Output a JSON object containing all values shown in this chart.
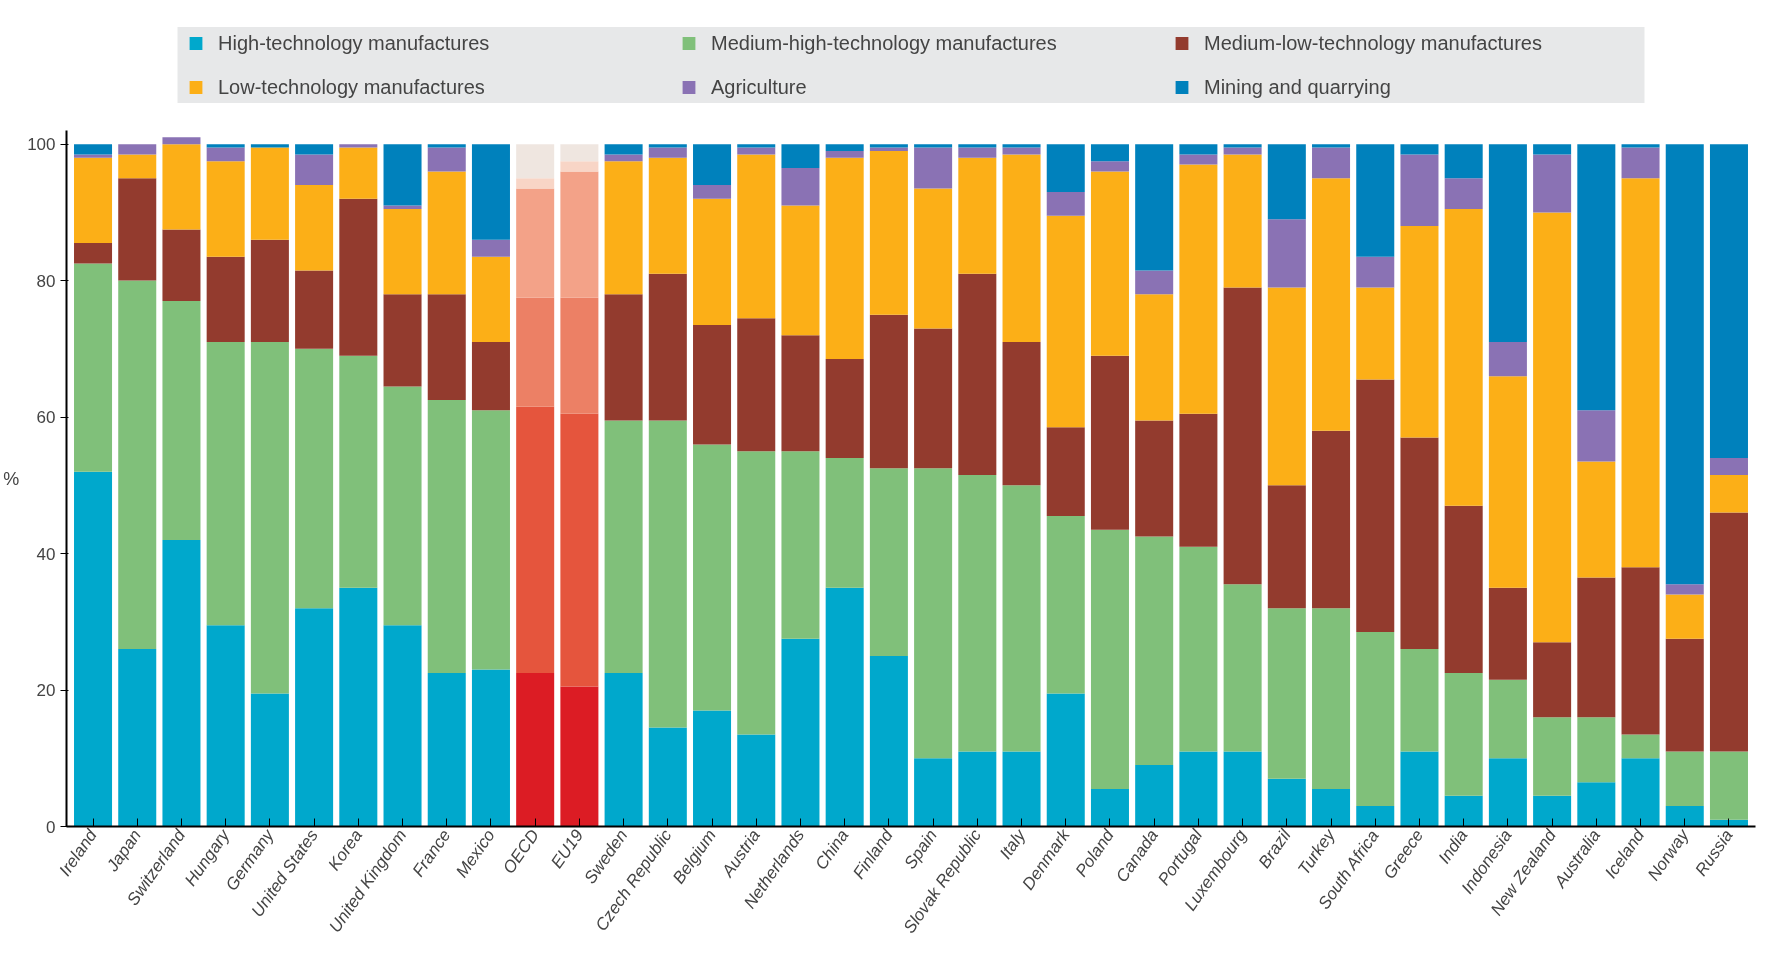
{
  "chart_data": {
    "type": "bar",
    "stacked": true,
    "ylabel": "%",
    "ylim": [
      0,
      102
    ],
    "yticks": [
      0,
      20,
      40,
      60,
      80,
      100
    ],
    "legend": "top",
    "grid": false,
    "categories": [
      "Ireland",
      "Japan",
      "Switzerland",
      "Hungary",
      "Germany",
      "United States",
      "Korea",
      "United Kingdom",
      "France",
      "Mexico",
      "OECD",
      "EU19",
      "Sweden",
      "Czech Republic",
      "Belgium",
      "Austria",
      "Netherlands",
      "China",
      "Finland",
      "Spain",
      "Slovak Republic",
      "Italy",
      "Denmark",
      "Poland",
      "Canada",
      "Portugal",
      "Luxembourg",
      "Brazil",
      "Turkey",
      "South Africa",
      "Greece",
      "India",
      "Indonesia",
      "New Zealand",
      "Australia",
      "Iceland",
      "Norway",
      "Russia"
    ],
    "series": [
      {
        "name": "High-technology manufactures",
        "color": "#00a8cc",
        "colors": [
          "#00a8cc",
          "#00a8cc",
          "#00a8cc",
          "#00a8cc",
          "#00a8cc",
          "#00a8cc",
          "#00a8cc",
          "#00a8cc",
          "#00a8cc",
          "#00a8cc",
          "#dc1c24",
          "#dc1c24",
          "#00a8cc",
          "#00a8cc",
          "#00a8cc",
          "#00a8cc",
          "#00a8cc",
          "#00a8cc",
          "#00a8cc",
          "#00a8cc",
          "#00a8cc",
          "#00a8cc",
          "#00a8cc",
          "#00a8cc",
          "#00a8cc",
          "#00a8cc",
          "#00a8cc",
          "#00a8cc",
          "#00a8cc",
          "#00a8cc",
          "#00a8cc",
          "#00a8cc",
          "#00a8cc",
          "#00a8cc",
          "#00a8cc",
          "#00a8cc",
          "#00a8cc",
          "#00a8cc"
        ],
        "values": [
          52,
          26,
          42,
          29.5,
          19.5,
          32,
          35,
          29.5,
          22.5,
          23,
          22.5,
          20.5,
          22.5,
          14.5,
          17,
          13.5,
          27.5,
          35,
          25,
          10,
          11,
          11,
          19.5,
          5.5,
          9,
          11,
          11,
          7,
          5.5,
          3,
          11,
          4.5,
          10,
          4.5,
          6.5,
          10,
          3,
          1
        ]
      },
      {
        "name": "Medium-high-technology manufactures",
        "color": "#80c07a",
        "colors": [
          "#80c07a",
          "#80c07a",
          "#80c07a",
          "#80c07a",
          "#80c07a",
          "#80c07a",
          "#80c07a",
          "#80c07a",
          "#80c07a",
          "#80c07a",
          "#e5553d",
          "#e5553d",
          "#80c07a",
          "#80c07a",
          "#80c07a",
          "#80c07a",
          "#80c07a",
          "#80c07a",
          "#80c07a",
          "#80c07a",
          "#80c07a",
          "#80c07a",
          "#80c07a",
          "#80c07a",
          "#80c07a",
          "#80c07a",
          "#80c07a",
          "#80c07a",
          "#80c07a",
          "#80c07a",
          "#80c07a",
          "#80c07a",
          "#80c07a",
          "#80c07a",
          "#80c07a",
          "#80c07a",
          "#80c07a",
          "#80c07a"
        ],
        "values": [
          30.5,
          54,
          35,
          41.5,
          51.5,
          38,
          34,
          35,
          40,
          38,
          39,
          40,
          37,
          45,
          39,
          41.5,
          27.5,
          19,
          27.5,
          42.5,
          40.5,
          39,
          26,
          38,
          33.5,
          30,
          24.5,
          25,
          26.5,
          25.5,
          15,
          18,
          11.5,
          11.5,
          9.5,
          3.5,
          8,
          10
        ]
      },
      {
        "name": "Medium-low-technology manufactures",
        "color": "#933b2e",
        "colors": [
          "#933b2e",
          "#933b2e",
          "#933b2e",
          "#933b2e",
          "#933b2e",
          "#933b2e",
          "#933b2e",
          "#933b2e",
          "#933b2e",
          "#933b2e",
          "#ec8065",
          "#ec8065",
          "#933b2e",
          "#933b2e",
          "#933b2e",
          "#933b2e",
          "#933b2e",
          "#933b2e",
          "#933b2e",
          "#933b2e",
          "#933b2e",
          "#933b2e",
          "#933b2e",
          "#933b2e",
          "#933b2e",
          "#933b2e",
          "#933b2e",
          "#933b2e",
          "#933b2e",
          "#933b2e",
          "#933b2e",
          "#933b2e",
          "#933b2e",
          "#933b2e",
          "#933b2e",
          "#933b2e",
          "#933b2e",
          "#933b2e"
        ],
        "values": [
          3,
          15,
          10.5,
          12.5,
          15,
          11.5,
          23,
          13.5,
          15.5,
          10,
          16,
          17,
          18.5,
          21.5,
          17.5,
          19.5,
          17,
          14.5,
          22.5,
          20.5,
          29.5,
          21,
          13,
          25.5,
          17,
          19.5,
          43.5,
          18,
          26,
          37,
          31,
          24.5,
          13.5,
          11,
          20.5,
          24.5,
          16.5,
          35
        ]
      },
      {
        "name": "Low-technology manufactures",
        "color": "#fcaf17",
        "colors": [
          "#fcaf17",
          "#fcaf17",
          "#fcaf17",
          "#fcaf17",
          "#fcaf17",
          "#fcaf17",
          "#fcaf17",
          "#fcaf17",
          "#fcaf17",
          "#fcaf17",
          "#f3a288",
          "#f3a288",
          "#fcaf17",
          "#fcaf17",
          "#fcaf17",
          "#fcaf17",
          "#fcaf17",
          "#fcaf17",
          "#fcaf17",
          "#fcaf17",
          "#fcaf17",
          "#fcaf17",
          "#fcaf17",
          "#fcaf17",
          "#fcaf17",
          "#fcaf17",
          "#fcaf17",
          "#fcaf17",
          "#fcaf17",
          "#fcaf17",
          "#fcaf17",
          "#fcaf17",
          "#fcaf17",
          "#fcaf17",
          "#fcaf17",
          "#fcaf17",
          "#fcaf17",
          "#fcaf17"
        ],
        "values": [
          12.5,
          3.5,
          12.5,
          14,
          13.5,
          12.5,
          7.5,
          12.5,
          18,
          12.5,
          16,
          18.5,
          19.5,
          17,
          18.5,
          24,
          19,
          29.5,
          24,
          20.5,
          17,
          27.5,
          31,
          27,
          18.5,
          36.5,
          19.5,
          29,
          37,
          13.5,
          31,
          43.5,
          31,
          63,
          17,
          57,
          6.5,
          5.5
        ]
      },
      {
        "name": "Agriculture",
        "color": "#8a72b4",
        "colors": [
          "#8a72b4",
          "#8a72b4",
          "#8a72b4",
          "#8a72b4",
          "#8a72b4",
          "#8a72b4",
          "#8a72b4",
          "#8a72b4",
          "#8a72b4",
          "#8a72b4",
          "#f8d5c6",
          "#f8d5c6",
          "#8a72b4",
          "#8a72b4",
          "#8a72b4",
          "#8a72b4",
          "#8a72b4",
          "#8a72b4",
          "#8a72b4",
          "#8a72b4",
          "#8a72b4",
          "#8a72b4",
          "#8a72b4",
          "#8a72b4",
          "#8a72b4",
          "#8a72b4",
          "#8a72b4",
          "#8a72b4",
          "#8a72b4",
          "#8a72b4",
          "#8a72b4",
          "#8a72b4",
          "#8a72b4",
          "#8a72b4",
          "#8a72b4",
          "#8a72b4",
          "#8a72b4",
          "#8a72b4"
        ],
        "values": [
          0.5,
          1.5,
          1,
          2,
          0,
          4.5,
          0.5,
          0.5,
          3.5,
          2.5,
          1.5,
          1.5,
          1,
          1.5,
          2,
          1,
          5.5,
          1,
          0.5,
          6,
          1.5,
          1,
          3.5,
          1.5,
          3.5,
          1.5,
          1,
          10,
          4.5,
          4.5,
          10.5,
          4.5,
          5,
          8.5,
          7.5,
          4.5,
          1.5,
          2.5
        ]
      },
      {
        "name": "Mining and quarrying",
        "color": "#0081bc",
        "colors": [
          "#0081bc",
          "#0081bc",
          "#0081bc",
          "#0081bc",
          "#0081bc",
          "#0081bc",
          "#0081bc",
          "#0081bc",
          "#0081bc",
          "#0081bc",
          "#efe6e0",
          "#efe6e0",
          "#0081bc",
          "#0081bc",
          "#0081bc",
          "#0081bc",
          "#0081bc",
          "#0081bc",
          "#0081bc",
          "#0081bc",
          "#0081bc",
          "#0081bc",
          "#0081bc",
          "#0081bc",
          "#0081bc",
          "#0081bc",
          "#0081bc",
          "#0081bc",
          "#0081bc",
          "#0081bc",
          "#0081bc",
          "#0081bc",
          "#0081bc",
          "#0081bc",
          "#0081bc",
          "#0081bc",
          "#0081bc",
          "#0081bc"
        ],
        "values": [
          1.5,
          0,
          0,
          0.5,
          0.5,
          1.5,
          0,
          9,
          0.5,
          14,
          5,
          2.5,
          1.5,
          0.5,
          6,
          0.5,
          3.5,
          1,
          0.5,
          0.5,
          0.5,
          0.5,
          7,
          2.5,
          18.5,
          1.5,
          0.5,
          11,
          0.5,
          16.5,
          1.5,
          5,
          29,
          1.5,
          39,
          0.5,
          64.5,
          46
        ]
      }
    ]
  }
}
